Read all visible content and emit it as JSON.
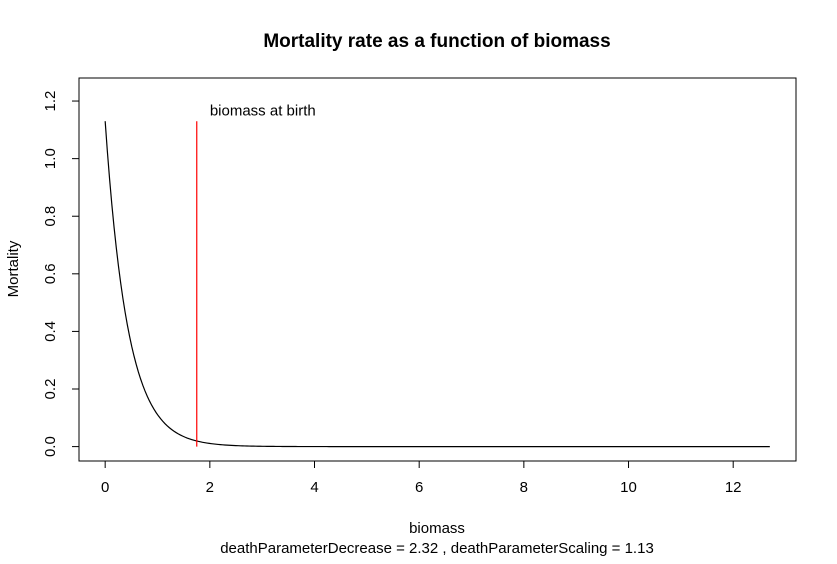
{
  "chart_data": {
    "type": "line",
    "title": "Mortality rate as a function of biomass",
    "xlabel": "biomass",
    "ylabel": "Mortality",
    "subtitle": "deathParameterDecrease =  2.32 , deathParameterScaling =  1.13",
    "xlim": [
      -0.5,
      13.2
    ],
    "ylim": [
      -0.05,
      1.28
    ],
    "x_ticks": [
      0,
      2,
      4,
      6,
      8,
      10,
      12
    ],
    "x_tick_labels": [
      "0",
      "2",
      "4",
      "6",
      "8",
      "10",
      "12"
    ],
    "y_ticks": [
      0.0,
      0.2,
      0.4,
      0.6,
      0.8,
      1.0,
      1.2
    ],
    "y_tick_labels": [
      "0.0",
      "0.2",
      "0.4",
      "0.6",
      "0.8",
      "1.0",
      "1.2"
    ],
    "grid": false,
    "series": [
      {
        "kind": "curve",
        "color": "#000000",
        "function": "exponential_decay",
        "scaling": 1.13,
        "decrease": 2.32,
        "x_range": [
          0,
          12.7
        ]
      },
      {
        "kind": "vline",
        "color": "#ff0000",
        "x": 1.75,
        "y_range": [
          0,
          1.13
        ]
      }
    ],
    "annotations": [
      {
        "text": "biomass at birth",
        "x": 2.0,
        "y": 1.15
      }
    ]
  }
}
